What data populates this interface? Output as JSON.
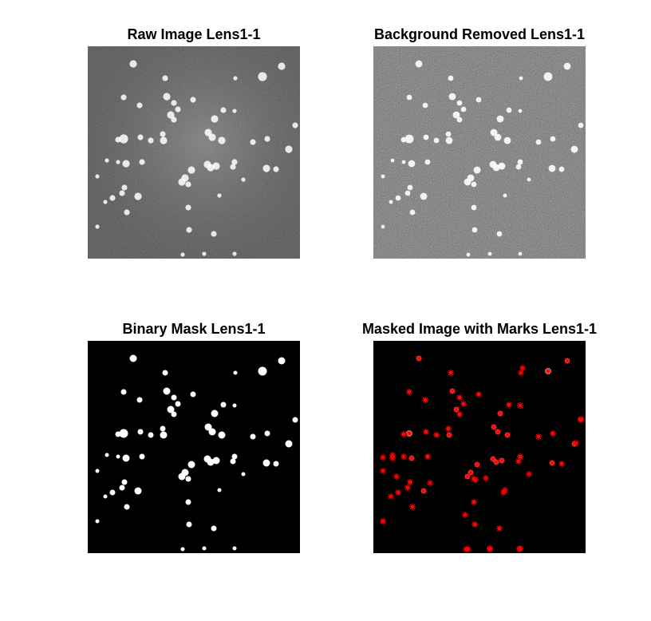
{
  "figure": {
    "panels": [
      {
        "title": "Raw Image Lens1-1"
      },
      {
        "title": "Background Removed Lens1-1"
      },
      {
        "title": "Binary Mask Lens1-1"
      },
      {
        "title": "Masked Image with Marks Lens1-1"
      }
    ]
  },
  "colors": {
    "figure_background": "#ffffff",
    "raw_background": "#3a3a3a",
    "image_background": "#000000",
    "spot": "#ffffff",
    "marker": "#ff0000"
  },
  "marker_symbol": "asterisk"
}
